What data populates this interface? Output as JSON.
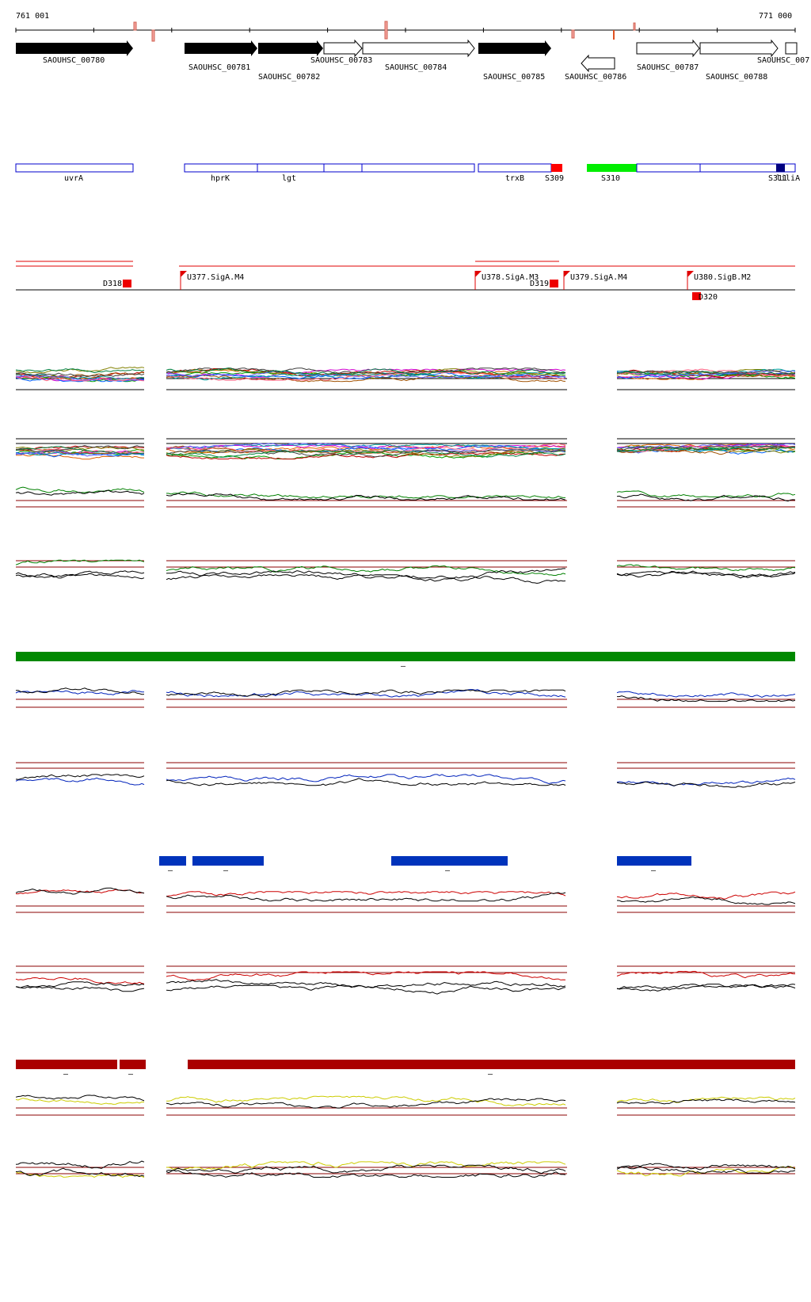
{
  "ruler": {
    "start_label": "761 001",
    "end_label": "771 000"
  },
  "genes": [
    {
      "label": "SAOUHSC_00780",
      "filled": true,
      "strand": "+"
    },
    {
      "label": "SAOUHSC_00781",
      "filled": true,
      "strand": "+"
    },
    {
      "label": "SAOUHSC_00782",
      "filled": true,
      "strand": "+"
    },
    {
      "label": "SAOUHSC_00783",
      "filled": false,
      "strand": "+"
    },
    {
      "label": "SAOUHSC_00784",
      "filled": false,
      "strand": "+"
    },
    {
      "label": "SAOUHSC_00785",
      "filled": true,
      "strand": "+"
    },
    {
      "label": "SAOUHSC_00786",
      "filled": false,
      "strand": "-"
    },
    {
      "label": "SAOUHSC_00787",
      "filled": false,
      "strand": "+"
    },
    {
      "label": "SAOUHSC_00788",
      "filled": false,
      "strand": "+"
    },
    {
      "label": "SAOUHSC_007",
      "filled": false,
      "strand": "+"
    }
  ],
  "annotations": [
    {
      "label": "uvrA",
      "type": "gene-name"
    },
    {
      "label": "hprK",
      "type": "gene-name"
    },
    {
      "label": "lgt",
      "type": "gene-name"
    },
    {
      "label": "trxB",
      "type": "gene-name"
    },
    {
      "label": "S309",
      "type": "segment",
      "color": "#ff0000"
    },
    {
      "label": "S310",
      "type": "segment",
      "color": "#00ee00"
    },
    {
      "label": "S311",
      "type": "segment",
      "color": "#000080"
    },
    {
      "label": "liliA",
      "type": "gene-name"
    }
  ],
  "regulatory": [
    {
      "label": "D318",
      "kind": "downshift"
    },
    {
      "label": "U377.SigA.M4",
      "kind": "promoter"
    },
    {
      "label": "U378.SigA.M3",
      "kind": "promoter"
    },
    {
      "label": "D319",
      "kind": "downshift"
    },
    {
      "label": "U379.SigA.M4",
      "kind": "promoter"
    },
    {
      "label": "U380.SigB.M2",
      "kind": "promoter"
    },
    {
      "label": "D320",
      "kind": "downshift"
    }
  ],
  "colors": {
    "gene_filled": "#000000",
    "segment_outline": "#0000cc",
    "threshold": "#8b0000",
    "track_green": "#008000",
    "track_blue": "#0022bb",
    "track_red": "#cc0000",
    "track_yellow": "#cccc00",
    "bar_green": "#008800",
    "bar_blue": "#0033bb",
    "bar_red": "#aa0000"
  },
  "highlight_bars": [
    {
      "color_key": "bar_green",
      "label": "–"
    },
    {
      "color_key": "bar_blue",
      "label": "–"
    },
    {
      "color_key": "bar_blue",
      "label": "–"
    },
    {
      "color_key": "bar_blue",
      "label": "–"
    },
    {
      "color_key": "bar_blue",
      "label": "–"
    },
    {
      "color_key": "bar_red",
      "label": "–"
    },
    {
      "color_key": "bar_red",
      "label": "–"
    },
    {
      "color_key": "bar_red",
      "label": "–"
    }
  ]
}
